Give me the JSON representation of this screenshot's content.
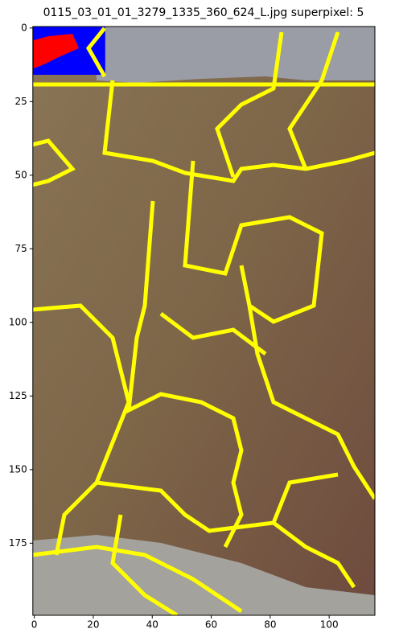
{
  "chart_data": {
    "type": "image",
    "title": "0115_03_01_01_3279_1335_360_624_L.jpg superpixel: 5",
    "xlim": [
      -0.5,
      115.5
    ],
    "ylim": [
      199.5,
      -0.5
    ],
    "xticks": [
      0,
      20,
      40,
      60,
      80,
      100
    ],
    "yticks": [
      0,
      25,
      50,
      75,
      100,
      125,
      150,
      175
    ]
  }
}
